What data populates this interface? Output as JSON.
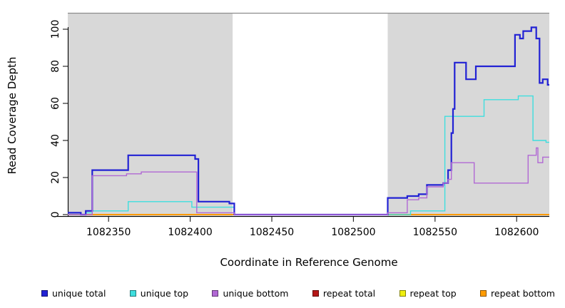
{
  "figure": {
    "xlabel": "Coordinate in Reference Genome",
    "ylabel": "Read Coverage Depth"
  },
  "chart_data": {
    "type": "line",
    "step": true,
    "title": "",
    "xlabel": "Coordinate in Reference Genome",
    "ylabel": "Read Coverage Depth",
    "xlim": [
      1082325,
      1082620
    ],
    "ylim": [
      0,
      105
    ],
    "grid": false,
    "legend_position": "bottom",
    "x_ticks": [
      {
        "value": 1082350,
        "label": "1082350"
      },
      {
        "value": 1082400,
        "label": "1082400"
      },
      {
        "value": 1082450,
        "label": "1082450"
      },
      {
        "value": 1082500,
        "label": "1082500"
      },
      {
        "value": 1082550,
        "label": "1082550"
      },
      {
        "value": 1082600,
        "label": "1082600"
      }
    ],
    "y_ticks": [
      {
        "value": 0,
        "label": "0"
      },
      {
        "value": 20,
        "label": "20"
      },
      {
        "value": 40,
        "label": "40"
      },
      {
        "value": 60,
        "label": "60"
      },
      {
        "value": 80,
        "label": "80"
      },
      {
        "value": 100,
        "label": "100"
      }
    ],
    "shaded_regions": [
      {
        "from": 1082325,
        "to": 1082426,
        "color": "#d8d8d8"
      },
      {
        "from": 1082521,
        "to": 1082620,
        "color": "#d8d8d8"
      }
    ],
    "series": [
      {
        "name": "unique total",
        "color": "#2222d4",
        "lw": 2.2,
        "points": [
          [
            1082325,
            1
          ],
          [
            1082333,
            0
          ],
          [
            1082336,
            2
          ],
          [
            1082340,
            24
          ],
          [
            1082362,
            32
          ],
          [
            1082403,
            30
          ],
          [
            1082405,
            7
          ],
          [
            1082424,
            6
          ],
          [
            1082427,
            0
          ],
          [
            1082521,
            9
          ],
          [
            1082533,
            10
          ],
          [
            1082540,
            11
          ],
          [
            1082545,
            16
          ],
          [
            1082555,
            17
          ],
          [
            1082558,
            24
          ],
          [
            1082560,
            44
          ],
          [
            1082561,
            57
          ],
          [
            1082562,
            82
          ],
          [
            1082569,
            73
          ],
          [
            1082575,
            80
          ],
          [
            1082599,
            97
          ],
          [
            1082602,
            95
          ],
          [
            1082604,
            99
          ],
          [
            1082609,
            101
          ],
          [
            1082612,
            95
          ],
          [
            1082614,
            71
          ],
          [
            1082616,
            73
          ],
          [
            1082619,
            70
          ]
        ]
      },
      {
        "name": "unique top",
        "color": "#3edede",
        "lw": 1.4,
        "points": [
          [
            1082325,
            0
          ],
          [
            1082336,
            1
          ],
          [
            1082340,
            2
          ],
          [
            1082362,
            7
          ],
          [
            1082401,
            4
          ],
          [
            1082427,
            0
          ],
          [
            1082535,
            2
          ],
          [
            1082556,
            53
          ],
          [
            1082580,
            62
          ],
          [
            1082601,
            64
          ],
          [
            1082610,
            40
          ],
          [
            1082618,
            39
          ]
        ]
      },
      {
        "name": "unique bottom",
        "color": "#b168d4",
        "lw": 1.4,
        "points": [
          [
            1082325,
            0
          ],
          [
            1082340,
            21
          ],
          [
            1082361,
            22
          ],
          [
            1082370,
            23
          ],
          [
            1082404,
            1
          ],
          [
            1082427,
            0
          ],
          [
            1082521,
            1
          ],
          [
            1082533,
            8
          ],
          [
            1082540,
            9
          ],
          [
            1082545,
            15
          ],
          [
            1082555,
            17
          ],
          [
            1082558,
            19
          ],
          [
            1082560,
            28
          ],
          [
            1082574,
            17
          ],
          [
            1082607,
            32
          ],
          [
            1082612,
            36
          ],
          [
            1082613,
            28
          ],
          [
            1082616,
            31
          ]
        ]
      },
      {
        "name": "repeat total",
        "color": "#b51717",
        "lw": 1.4,
        "points": [
          [
            1082325,
            0
          ]
        ]
      },
      {
        "name": "repeat top",
        "color": "#efef10",
        "lw": 1.4,
        "points": [
          [
            1082325,
            0
          ]
        ]
      },
      {
        "name": "repeat bottom",
        "color": "#ff9c00",
        "lw": 2.0,
        "points": [
          [
            1082325,
            0
          ]
        ]
      }
    ],
    "legend": [
      {
        "label": "unique total",
        "color": "#2222d4"
      },
      {
        "label": "unique top",
        "color": "#3edede"
      },
      {
        "label": "unique bottom",
        "color": "#b168d4"
      },
      {
        "label": "repeat total",
        "color": "#b51717"
      },
      {
        "label": "repeat top",
        "color": "#efef10"
      },
      {
        "label": "repeat bottom",
        "color": "#ff9c00"
      }
    ]
  }
}
